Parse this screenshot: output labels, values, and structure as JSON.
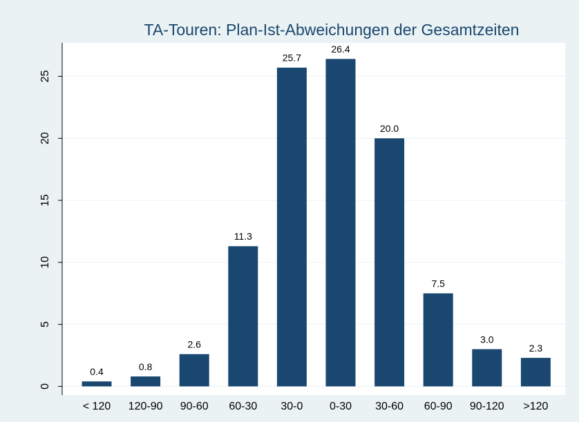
{
  "chart_data": {
    "type": "bar",
    "title": "TA-Touren: Plan-Ist-Abweichungen der Gesamtzeiten",
    "categories": [
      "< 120",
      "120-90",
      "90-60",
      "60-30",
      "30-0",
      "0-30",
      "30-60",
      "60-90",
      "90-120",
      ">120"
    ],
    "values": [
      0.4,
      0.8,
      2.6,
      11.3,
      25.7,
      26.4,
      20.0,
      7.5,
      3.0,
      2.3
    ],
    "value_labels": [
      "0.4",
      "0.8",
      "2.6",
      "11.3",
      "25.7",
      "26.4",
      "20.0",
      "7.5",
      "3.0",
      "2.3"
    ],
    "color": "#1a476f",
    "ylim": [
      -0.7,
      27.7
    ],
    "yticks": [
      0,
      5,
      10,
      15,
      20,
      25
    ],
    "grid": true
  }
}
